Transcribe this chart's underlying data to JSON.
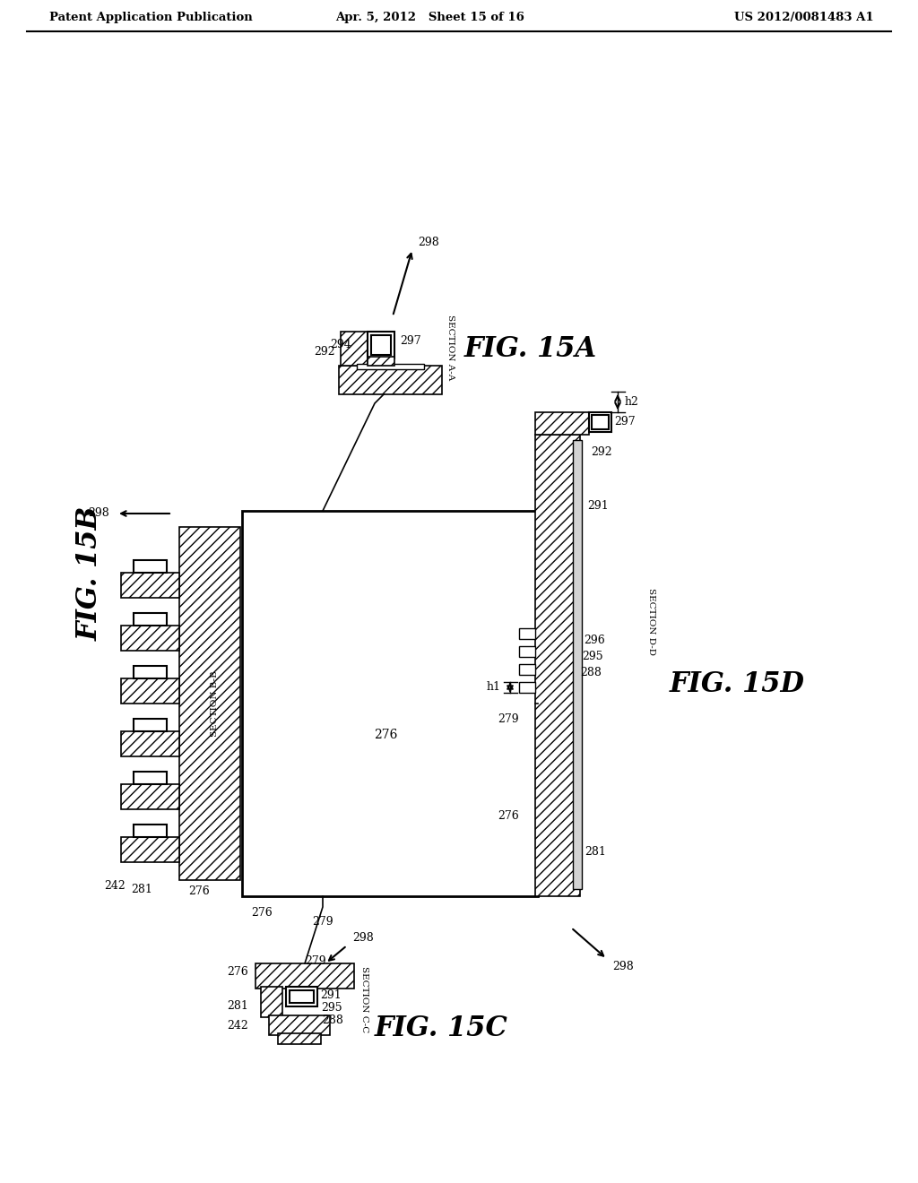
{
  "title_left": "Patent Application Publication",
  "title_mid": "Apr. 5, 2012   Sheet 15 of 16",
  "title_right": "US 2012/0081483 A1",
  "fig_15A_label": "FIG. 15A",
  "fig_15B_label": "FIG. 15B",
  "fig_15C_label": "FIG. 15C",
  "fig_15D_label": "FIG. 15D",
  "background_color": "#ffffff"
}
